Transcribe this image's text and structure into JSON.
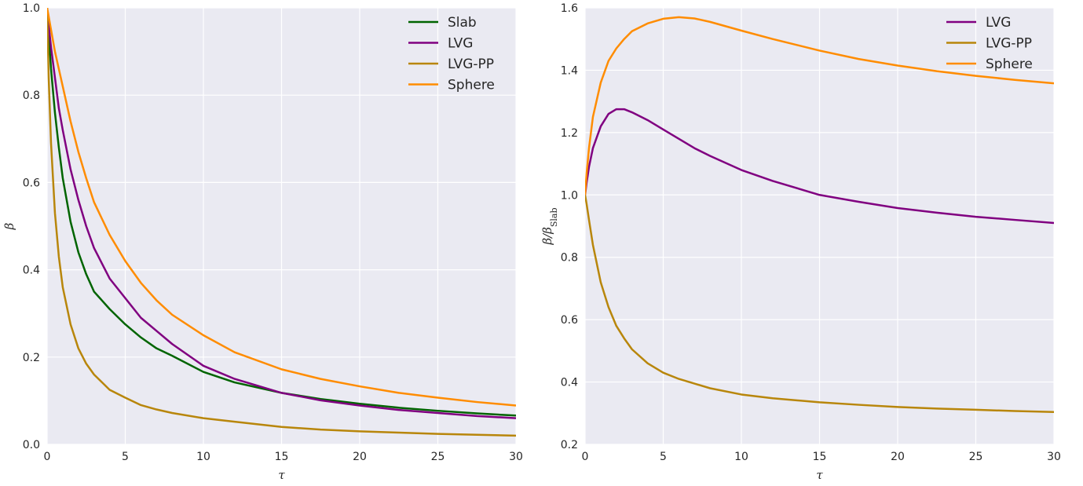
{
  "chart_data": [
    {
      "type": "line",
      "xlabel": "τ",
      "ylabel": "β",
      "xlim": [
        0,
        30
      ],
      "ylim": [
        0.0,
        1.0
      ],
      "xticks": [
        "0",
        "5",
        "10",
        "15",
        "20",
        "25",
        "30"
      ],
      "yticks": [
        "0.0",
        "0.2",
        "0.4",
        "0.6",
        "0.8",
        "1.0"
      ],
      "grid": true,
      "legend": "top-right",
      "x": [
        0,
        0.1,
        0.25,
        0.5,
        0.75,
        1,
        1.5,
        2,
        2.5,
        3,
        4,
        5,
        6,
        7,
        8,
        10,
        12,
        15,
        17.5,
        20,
        22.5,
        25,
        27.5,
        30
      ],
      "series": [
        {
          "name": "Slab",
          "color": "#006400",
          "values": [
            1.0,
            0.94,
            0.86,
            0.76,
            0.68,
            0.61,
            0.51,
            0.44,
            0.39,
            0.35,
            0.31,
            0.275,
            0.245,
            0.22,
            0.203,
            0.166,
            0.142,
            0.118,
            0.104,
            0.093,
            0.084,
            0.077,
            0.071,
            0.066
          ]
        },
        {
          "name": "LVG",
          "color": "#800080",
          "values": [
            1.0,
            0.96,
            0.91,
            0.84,
            0.77,
            0.72,
            0.63,
            0.56,
            0.5,
            0.45,
            0.38,
            0.335,
            0.29,
            0.26,
            0.23,
            0.18,
            0.15,
            0.118,
            0.101,
            0.089,
            0.079,
            0.072,
            0.065,
            0.06
          ]
        },
        {
          "name": "LVG-PP",
          "color": "#B8860B",
          "values": [
            1.0,
            0.84,
            0.69,
            0.53,
            0.43,
            0.36,
            0.275,
            0.22,
            0.185,
            0.16,
            0.125,
            0.107,
            0.09,
            0.08,
            0.072,
            0.06,
            0.052,
            0.04,
            0.034,
            0.03,
            0.027,
            0.024,
            0.022,
            0.02
          ]
        },
        {
          "name": "Sphere",
          "color": "#FF8C00",
          "values": [
            1.0,
            0.98,
            0.95,
            0.9,
            0.86,
            0.82,
            0.74,
            0.67,
            0.61,
            0.555,
            0.48,
            0.42,
            0.37,
            0.33,
            0.297,
            0.25,
            0.211,
            0.172,
            0.15,
            0.133,
            0.118,
            0.107,
            0.097,
            0.089
          ]
        }
      ]
    },
    {
      "type": "line",
      "xlabel": "τ",
      "ylabel": "β/β_Slab",
      "xlim": [
        0,
        30
      ],
      "ylim": [
        0.2,
        1.6
      ],
      "xticks": [
        "0",
        "5",
        "10",
        "15",
        "20",
        "25",
        "30"
      ],
      "yticks": [
        "0.2",
        "0.4",
        "0.6",
        "0.8",
        "1.0",
        "1.2",
        "1.4",
        "1.6"
      ],
      "grid": true,
      "legend": "top-right",
      "x": [
        0,
        0.1,
        0.25,
        0.5,
        1,
        1.5,
        2,
        2.5,
        3,
        4,
        5,
        6,
        7,
        8,
        10,
        12,
        15,
        17.5,
        20,
        22.5,
        25,
        27.5,
        30
      ],
      "series": [
        {
          "name": "LVG",
          "color": "#800080",
          "values": [
            1.0,
            1.04,
            1.09,
            1.15,
            1.22,
            1.26,
            1.275,
            1.275,
            1.265,
            1.24,
            1.21,
            1.18,
            1.15,
            1.125,
            1.08,
            1.045,
            1.0,
            0.978,
            0.958,
            0.943,
            0.93,
            0.92,
            0.91
          ]
        },
        {
          "name": "LVG-PP",
          "color": "#B8860B",
          "values": [
            1.0,
            0.97,
            0.92,
            0.84,
            0.72,
            0.64,
            0.58,
            0.54,
            0.505,
            0.46,
            0.43,
            0.41,
            0.395,
            0.38,
            0.36,
            0.348,
            0.335,
            0.327,
            0.32,
            0.315,
            0.311,
            0.307,
            0.304
          ]
        },
        {
          "name": "Sphere",
          "color": "#FF8C00",
          "values": [
            1.0,
            1.07,
            1.15,
            1.25,
            1.36,
            1.43,
            1.47,
            1.5,
            1.525,
            1.55,
            1.565,
            1.57,
            1.566,
            1.555,
            1.527,
            1.5,
            1.463,
            1.436,
            1.415,
            1.397,
            1.382,
            1.369,
            1.358
          ]
        }
      ]
    }
  ]
}
